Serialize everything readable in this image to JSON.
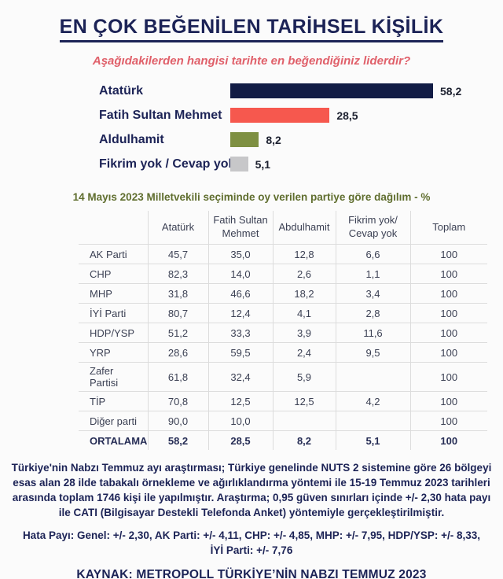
{
  "page": {
    "title": "EN ÇOK BEĞENİLEN TARİHSEL KİŞİLİK",
    "subtitle": "Aşağıdakilerden hangisi tarihte en beğendiğiniz liderdir?"
  },
  "chart_data": [
    {
      "type": "bar",
      "orientation": "horizontal",
      "categories": [
        "Atatürk",
        "Fatih Sultan Mehmet",
        "Aldulhamit",
        "Fikrim yok / Cevap yok"
      ],
      "values": [
        58.2,
        28.5,
        8.2,
        5.1
      ],
      "value_labels": [
        "58,2",
        "28,5",
        "8,2",
        "5,1"
      ],
      "bar_colors": [
        "#121c45",
        "#f6584e",
        "#7e9042",
        "#c7c7c9"
      ],
      "xlim": [
        0,
        62
      ],
      "grid": false,
      "legend": false
    },
    {
      "type": "table",
      "title": "14 Mayıs 2023 Milletvekili seçiminde oy verilen partiye göre dağılım - %",
      "columns": [
        "",
        "Atatürk",
        "Fatih Sultan\nMehmet",
        "Abdulhamit",
        "Fikrim yok/\nCevap yok",
        "Toplam"
      ],
      "rows": [
        [
          "AK Parti",
          "45,7",
          "35,0",
          "12,8",
          "6,6",
          "100"
        ],
        [
          "CHP",
          "82,3",
          "14,0",
          "2,6",
          "1,1",
          "100"
        ],
        [
          "MHP",
          "31,8",
          "46,6",
          "18,2",
          "3,4",
          "100"
        ],
        [
          "İYİ Parti",
          "80,7",
          "12,4",
          "4,1",
          "2,8",
          "100"
        ],
        [
          "HDP/YSP",
          "51,2",
          "33,3",
          "3,9",
          "11,6",
          "100"
        ],
        [
          "YRP",
          "28,6",
          "59,5",
          "2,4",
          "9,5",
          "100"
        ],
        [
          "Zafer Partisi",
          "61,8",
          "32,4",
          "5,9",
          "",
          "100"
        ],
        [
          "TİP",
          "70,8",
          "12,5",
          "12,5",
          "4,2",
          "100"
        ],
        [
          "Diğer parti",
          "90,0",
          "10,0",
          "",
          "",
          "100"
        ]
      ],
      "footer_row": [
        "ORTALAMA",
        "58,2",
        "28,5",
        "8,2",
        "5,1",
        "100"
      ]
    }
  ],
  "notes": {
    "methodology": "Türkiye'nin Nabzı Temmuz ayı araştırması; Türkiye genelinde NUTS 2 sistemine göre 26 bölgeyi esas alan 28 ilde tabakalı örnekleme ve ağırlıklandırma yöntemi ile 15-19 Temmuz 2023 tarihleri arasında toplam 1746 kişi ile yapılmıştır. Araştırma; 0,95 güven sınırları içinde +/- 2,30 hata payı ile CATI (Bilgisayar Destekli Telefonda Anket) yöntemiyle gerçekleştirilmiştir.",
    "margin_of_error": "Hata Payı: Genel: +/- 2,30, AK Parti: +/- 4,11, CHP: +/- 4,85, MHP: +/- 7,95, HDP/YSP: +/- 8,33, İYİ Parti: +/- 7,76",
    "source": "KAYNAK: METROPOLL TÜRKİYE’NİN NABZI TEMMUZ 2023"
  },
  "colors": {
    "navy": "#1c2356",
    "subtitle_rose": "#e0606a",
    "caption_olive": "#606e2f",
    "table_text": "#3c4154",
    "table_border": "#dcdcdc",
    "background": "#fbfbfb"
  }
}
